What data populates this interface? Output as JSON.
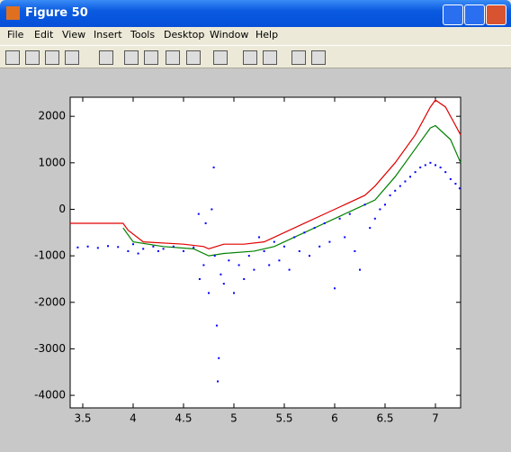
{
  "window": {
    "title": "Figure 50",
    "menu": [
      "File",
      "Edit",
      "View",
      "Insert",
      "Tools",
      "Desktop",
      "Window",
      "Help"
    ]
  },
  "chart_data": {
    "type": "mixed",
    "xlim": [
      3.375,
      7.25
    ],
    "xticks": [
      3.5,
      4,
      4.5,
      5,
      5.5,
      6,
      6.5,
      7
    ],
    "ylim": [
      -4270,
      2410
    ],
    "yticks": [
      -4000,
      -3000,
      -2000,
      -1000,
      0,
      1000,
      2000
    ],
    "series": [
      {
        "kind": "line",
        "color": "#e00000",
        "x": [
          3.375,
          3.9,
          3.95,
          4.1,
          4.5,
          4.7,
          4.75,
          4.9,
          5.1,
          5.3,
          5.5,
          5.7,
          5.9,
          6.1,
          6.3,
          6.4,
          6.6,
          6.8,
          6.95,
          7.0,
          7.1,
          7.25
        ],
        "y": [
          -300,
          -300,
          -450,
          -700,
          -750,
          -800,
          -850,
          -750,
          -750,
          -700,
          -500,
          -300,
          -100,
          100,
          300,
          500,
          1000,
          1600,
          2200,
          2350,
          2200,
          1600
        ]
      },
      {
        "kind": "line",
        "color": "#008000",
        "x": [
          3.9,
          4.0,
          4.3,
          4.6,
          4.75,
          4.9,
          5.2,
          5.4,
          5.6,
          5.8,
          6.0,
          6.2,
          6.4,
          6.6,
          6.8,
          6.95,
          7.0,
          7.15,
          7.25
        ],
        "y": [
          -400,
          -700,
          -800,
          -850,
          -1000,
          -950,
          -900,
          -800,
          -600,
          -400,
          -200,
          0,
          200,
          700,
          1300,
          1750,
          1800,
          1500,
          1000
        ]
      },
      {
        "kind": "scatter",
        "color": "#0000ff",
        "x": [
          3.45,
          3.55,
          3.65,
          3.75,
          3.85,
          3.95,
          4.0,
          4.05,
          4.1,
          4.2,
          4.25,
          4.3,
          4.4,
          4.5,
          4.6,
          4.65,
          4.66,
          4.7,
          4.72,
          4.75,
          4.78,
          4.8,
          4.81,
          4.83,
          4.84,
          4.85,
          4.87,
          4.9,
          4.95,
          5.0,
          5.05,
          5.1,
          5.15,
          5.2,
          5.25,
          5.3,
          5.35,
          5.4,
          5.45,
          5.5,
          5.55,
          5.6,
          5.65,
          5.7,
          5.75,
          5.8,
          5.85,
          5.9,
          5.95,
          6.0,
          6.05,
          6.1,
          6.15,
          6.2,
          6.25,
          6.3,
          6.35,
          6.4,
          6.45,
          6.5,
          6.55,
          6.6,
          6.65,
          6.7,
          6.75,
          6.8,
          6.85,
          6.9,
          6.95,
          7.0,
          7.05,
          7.1,
          7.15,
          7.2,
          7.24
        ],
        "y": [
          -820,
          -800,
          -830,
          -790,
          -810,
          -900,
          -750,
          -950,
          -850,
          -800,
          -900,
          -850,
          -800,
          -900,
          -820,
          -100,
          -1500,
          -1200,
          -300,
          -1800,
          0,
          900,
          -1000,
          -2500,
          -3700,
          -3200,
          -1400,
          -1600,
          -1100,
          -1800,
          -1200,
          -1500,
          -1000,
          -1300,
          -600,
          -900,
          -1200,
          -700,
          -1100,
          -800,
          -1300,
          -600,
          -900,
          -500,
          -1000,
          -400,
          -800,
          -300,
          -700,
          -1700,
          -200,
          -600,
          -100,
          -900,
          -1300,
          100,
          -400,
          -200,
          0,
          100,
          300,
          400,
          500,
          600,
          700,
          800,
          900,
          950,
          1000,
          950,
          900,
          800,
          650,
          550,
          450
        ]
      }
    ]
  }
}
